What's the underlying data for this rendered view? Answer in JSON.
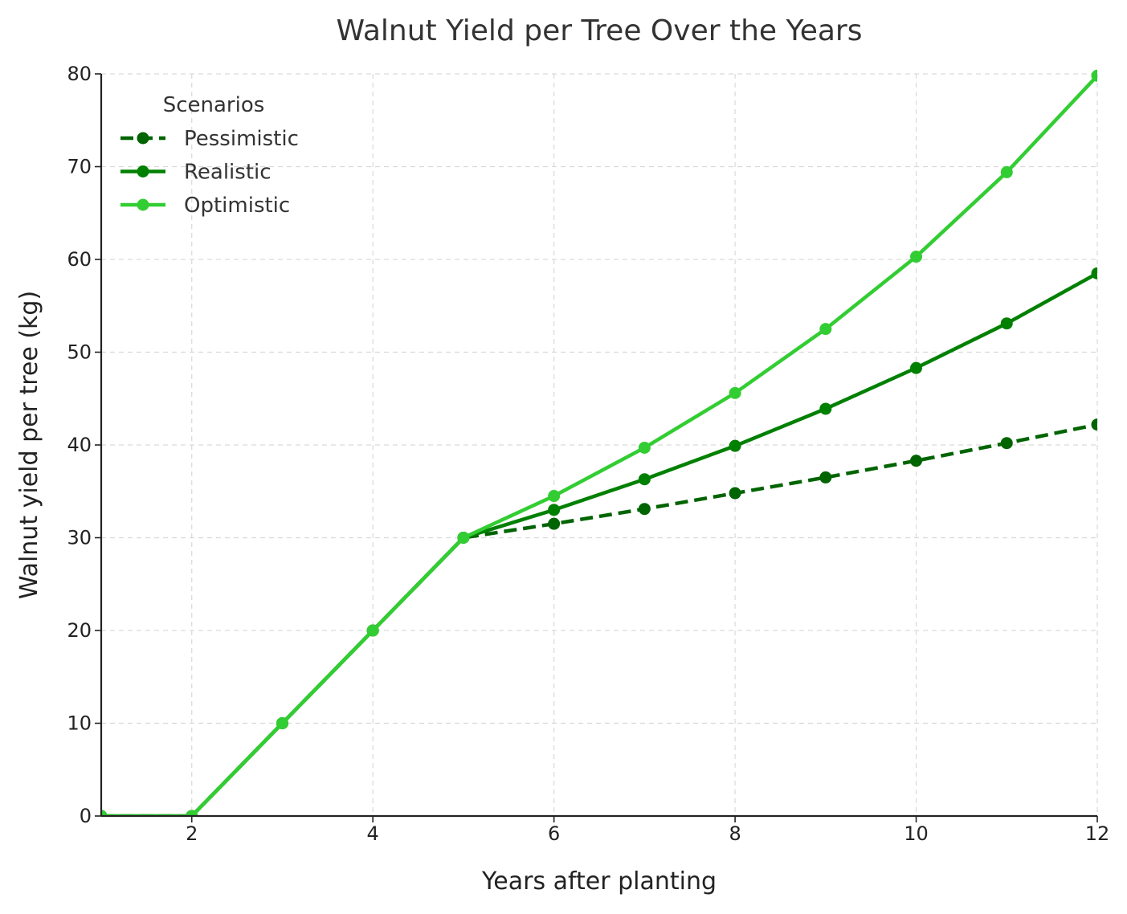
{
  "chart_data": {
    "type": "line",
    "title": "Walnut Yield per Tree Over the Years",
    "xlabel": "Years after planting",
    "ylabel": "Walnut yield per tree (kg)",
    "xlim": [
      1,
      12
    ],
    "ylim": [
      0,
      80
    ],
    "x_ticks": [
      2,
      4,
      6,
      8,
      10,
      12
    ],
    "y_ticks": [
      0,
      10,
      20,
      30,
      40,
      50,
      60,
      70,
      80
    ],
    "grid": true,
    "legend": {
      "title": "Scenarios",
      "position": "top-left"
    },
    "x": [
      1,
      2,
      3,
      4,
      5,
      6,
      7,
      8,
      9,
      10,
      11,
      12
    ],
    "series": [
      {
        "name": "Pessimistic",
        "color": "#006400",
        "line_style": "dashed",
        "values": [
          0,
          0,
          10,
          20,
          30,
          31.5,
          33.1,
          34.8,
          36.5,
          38.3,
          40.2,
          42.2
        ]
      },
      {
        "name": "Realistic",
        "color": "#008000",
        "line_style": "solid",
        "values": [
          0,
          0,
          10,
          20,
          30,
          33.0,
          36.3,
          39.9,
          43.9,
          48.3,
          53.1,
          58.5
        ]
      },
      {
        "name": "Optimistic",
        "color": "#32CD32",
        "line_style": "solid",
        "values": [
          0,
          0,
          10,
          20,
          30,
          34.5,
          39.7,
          45.6,
          52.5,
          60.3,
          69.4,
          79.8
        ]
      }
    ]
  }
}
